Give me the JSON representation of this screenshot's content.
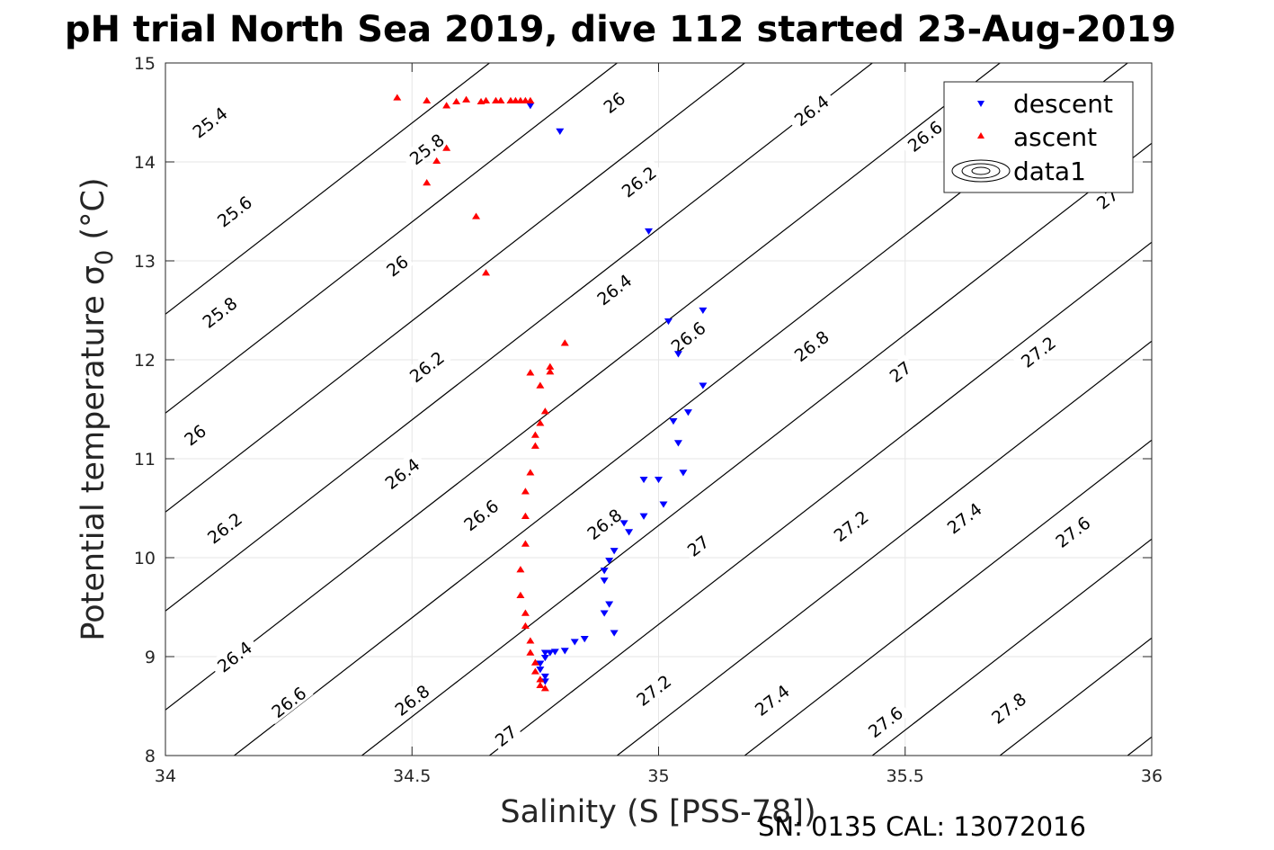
{
  "chart_data": {
    "type": "scatter",
    "title": "pH trial North Sea 2019, dive 112 started 23-Aug-2019",
    "xlabel": "Salinity (S [PSS-78])",
    "ylabel": "Potential temperature σ",
    "ylabel_subscript": "0",
    "ylabel_unit": " (°C)",
    "footer": "SN: 0135  CAL: 13072016",
    "xlim": [
      34,
      36
    ],
    "ylim": [
      8,
      15
    ],
    "xticks": [
      34,
      34.5,
      35,
      35.5,
      36
    ],
    "yticks": [
      8,
      9,
      10,
      11,
      12,
      13,
      14,
      15
    ],
    "xtick_labels": [
      "34",
      "34.5",
      "35",
      "35.5",
      "36"
    ],
    "ytick_labels": [
      "8",
      "9",
      "10",
      "11",
      "12",
      "13",
      "14",
      "15"
    ],
    "grid": true,
    "legend_position": "top-right",
    "legend": [
      "descent",
      "ascent",
      "data1"
    ],
    "colors": {
      "descent": "#0000ff",
      "ascent": "#ff0000",
      "contour": "#000000",
      "grid": "#e6e6e6"
    },
    "contour_levels": [
      25.4,
      25.6,
      25.8,
      26,
      26.2,
      26.4,
      26.6,
      26.8,
      27,
      27.2,
      27.4,
      27.6,
      27.8
    ],
    "contour_labels": [
      {
        "text": "25.4",
        "x": 34.09,
        "y": 14.4
      },
      {
        "text": "25.6",
        "x": 34.14,
        "y": 13.5
      },
      {
        "text": "25.8",
        "x": 34.11,
        "y": 12.48
      },
      {
        "text": "26",
        "x": 34.06,
        "y": 11.24
      },
      {
        "text": "26.2",
        "x": 34.12,
        "y": 10.3
      },
      {
        "text": "26.4",
        "x": 34.14,
        "y": 9.0
      },
      {
        "text": "26.6",
        "x": 34.25,
        "y": 8.54
      },
      {
        "text": "26.8",
        "x": 34.5,
        "y": 8.56
      },
      {
        "text": "27",
        "x": 34.69,
        "y": 8.2
      },
      {
        "text": "27.2",
        "x": 34.99,
        "y": 8.66
      },
      {
        "text": "27.4",
        "x": 35.23,
        "y": 8.56
      },
      {
        "text": "27.6",
        "x": 35.46,
        "y": 8.34
      },
      {
        "text": "27.8",
        "x": 35.71,
        "y": 8.48
      },
      {
        "text": "25.8",
        "x": 34.53,
        "y": 14.13
      },
      {
        "text": "26",
        "x": 34.47,
        "y": 12.95
      },
      {
        "text": "26.2",
        "x": 34.53,
        "y": 11.93
      },
      {
        "text": "26.4",
        "x": 34.48,
        "y": 10.85
      },
      {
        "text": "26.6",
        "x": 34.64,
        "y": 10.43
      },
      {
        "text": "26.8",
        "x": 34.89,
        "y": 10.34
      },
      {
        "text": "27",
        "x": 35.08,
        "y": 10.12
      },
      {
        "text": "27.2",
        "x": 35.39,
        "y": 10.32
      },
      {
        "text": "27.4",
        "x": 35.62,
        "y": 10.4
      },
      {
        "text": "27.6",
        "x": 35.84,
        "y": 10.26
      },
      {
        "text": "26",
        "x": 34.91,
        "y": 14.6
      },
      {
        "text": "26.2",
        "x": 34.96,
        "y": 13.8
      },
      {
        "text": "26.4",
        "x": 34.91,
        "y": 12.71
      },
      {
        "text": "26.6",
        "x": 35.06,
        "y": 12.23
      },
      {
        "text": "26.8",
        "x": 35.31,
        "y": 12.14
      },
      {
        "text": "27",
        "x": 35.49,
        "y": 11.88
      },
      {
        "text": "27.2",
        "x": 35.77,
        "y": 12.08
      },
      {
        "text": "26.4",
        "x": 35.31,
        "y": 14.52
      },
      {
        "text": "26.6",
        "x": 35.54,
        "y": 14.26
      },
      {
        "text": "27",
        "x": 35.91,
        "y": 13.63
      }
    ],
    "series": [
      {
        "name": "descent",
        "marker": "triangle-down",
        "x": [
          34.74,
          34.8,
          34.98,
          35.02,
          35.09,
          35.04,
          35.09,
          35.06,
          35.03,
          35.04,
          35.05,
          35.0,
          34.97,
          35.01,
          34.97,
          34.94,
          34.93,
          34.91,
          34.9,
          34.89,
          34.89,
          34.9,
          34.89,
          34.91,
          34.85,
          34.83,
          34.81,
          34.79,
          34.78,
          34.77,
          34.77,
          34.76,
          34.76,
          34.77,
          34.77
        ],
        "y": [
          14.57,
          14.31,
          13.3,
          12.39,
          12.5,
          12.06,
          11.74,
          11.47,
          11.38,
          11.16,
          10.86,
          10.79,
          10.79,
          10.54,
          10.42,
          10.26,
          10.35,
          10.07,
          9.97,
          9.87,
          9.77,
          9.53,
          9.44,
          9.24,
          9.18,
          9.15,
          9.06,
          9.05,
          9.04,
          9.04,
          8.99,
          8.93,
          8.87,
          8.8,
          8.75
        ]
      },
      {
        "name": "ascent",
        "marker": "triangle-up",
        "x": [
          34.47,
          34.53,
          34.57,
          34.59,
          34.61,
          34.64,
          34.65,
          34.67,
          34.68,
          34.7,
          34.71,
          34.72,
          34.73,
          34.74,
          34.57,
          34.55,
          34.53,
          34.63,
          34.65,
          34.81,
          34.78,
          34.74,
          34.76,
          34.77,
          34.78,
          34.76,
          34.75,
          34.75,
          34.74,
          34.73,
          34.73,
          34.73,
          34.72,
          34.72,
          34.73,
          34.73,
          34.74,
          34.74,
          34.75,
          34.75,
          34.76,
          34.76,
          34.77
        ],
        "y": [
          14.65,
          14.62,
          14.57,
          14.61,
          14.63,
          14.61,
          14.62,
          14.62,
          14.62,
          14.62,
          14.62,
          14.62,
          14.62,
          14.62,
          14.14,
          14.01,
          13.79,
          13.45,
          12.88,
          12.17,
          11.93,
          11.87,
          11.74,
          11.48,
          11.88,
          11.36,
          11.24,
          11.13,
          10.86,
          10.67,
          10.42,
          10.14,
          9.88,
          9.62,
          9.44,
          9.31,
          9.16,
          9.04,
          8.94,
          8.85,
          8.77,
          8.71,
          8.68
        ]
      }
    ]
  }
}
